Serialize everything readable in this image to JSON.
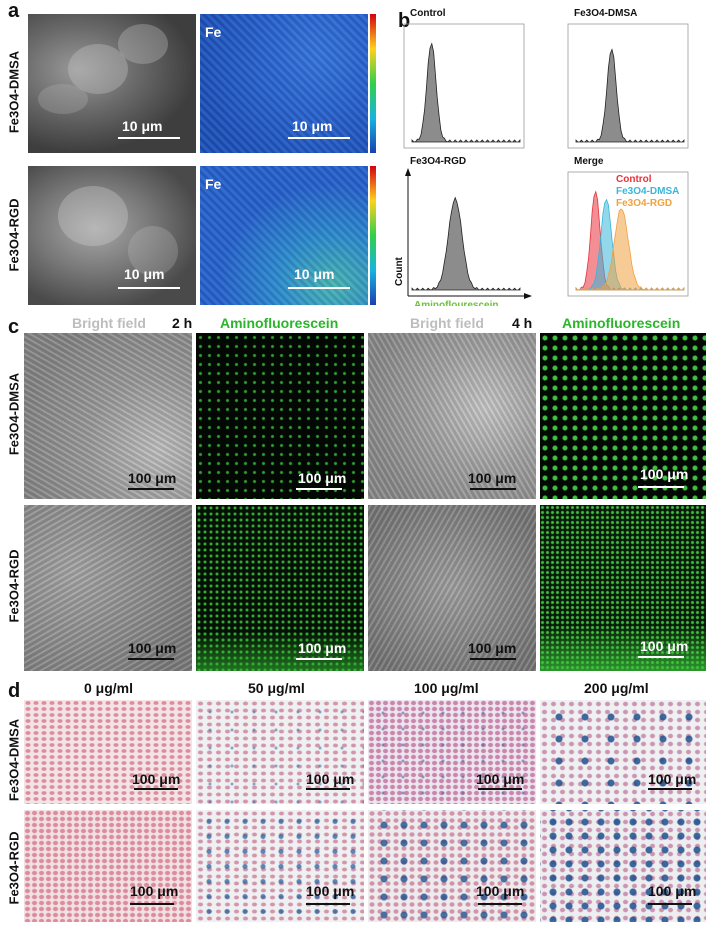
{
  "panel_letters": {
    "a": "a",
    "b": "b",
    "c": "c",
    "d": "d"
  },
  "row_labels": {
    "dmsa": "Fe3O4-DMSA",
    "rgd": "Fe3O4-RGD"
  },
  "panel_a": {
    "element_label": "Fe",
    "scalebar": "10 μm"
  },
  "panel_b": {
    "titles": [
      "Control",
      "Fe3O4-DMSA",
      "Fe3O4-RGD",
      "Merge"
    ],
    "y_axis_label": "Count",
    "x_axis_label": "Aminoflourescein",
    "legend": [
      {
        "name": "Control",
        "color": "#e8323c"
      },
      {
        "name": "Fe3O4-DMSA",
        "color": "#39b6d8"
      },
      {
        "name": "Fe3O4-RGD",
        "color": "#f0a040"
      }
    ],
    "colors": {
      "histogram_fill": "#8c8c8c",
      "axis_label_x": "#6cc23a"
    }
  },
  "panel_c": {
    "headers": [
      "Bright field",
      "2 h",
      "Aminofluorescein",
      "Bright field",
      "4 h",
      "Aminofluorescein"
    ],
    "scalebar": "100 μm",
    "colors": {
      "bright_field_header": "#bdbdbd",
      "fluor_header": "#2bb52b"
    }
  },
  "panel_d": {
    "concentrations": [
      "0 μg/ml",
      "50 μg/ml",
      "100 μg/ml",
      "200 μg/ml"
    ],
    "scalebar": "100 μm"
  }
}
